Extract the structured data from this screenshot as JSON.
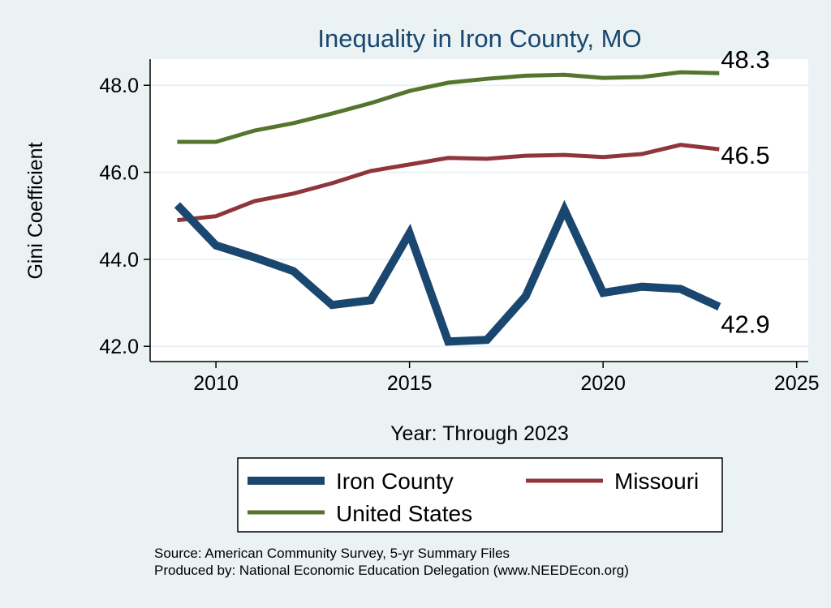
{
  "chart_data": {
    "type": "line",
    "title": "Inequality in Iron County, MO",
    "xlabel": "Year: Through 2023",
    "ylabel": "Gini Coefficient",
    "xlim": [
      2008.3,
      2025.3
    ],
    "ylim": [
      41.65,
      48.6
    ],
    "xticks": [
      2010,
      2015,
      2020,
      2025
    ],
    "xtick_labels": [
      "2010",
      "2015",
      "2020",
      "2025"
    ],
    "yticks": [
      42,
      44,
      46,
      48
    ],
    "ytick_labels": [
      "42.0",
      "44.0",
      "46.0",
      "48.0"
    ],
    "grid": true,
    "legend_position": "bottom",
    "x": [
      2009,
      2010,
      2011,
      2012,
      2013,
      2014,
      2015,
      2016,
      2017,
      2018,
      2019,
      2020,
      2021,
      2022,
      2023
    ],
    "series": [
      {
        "name": "Iron County",
        "color": "#1a476f",
        "end_label": "42.9",
        "values": [
          45.25,
          44.32,
          44.04,
          43.73,
          42.95,
          43.06,
          44.6,
          42.11,
          42.15,
          43.15,
          45.14,
          43.23,
          43.37,
          43.32,
          42.91
        ]
      },
      {
        "name": "Missouri",
        "color": "#90353b",
        "end_label": "46.5",
        "values": [
          44.9,
          44.99,
          45.34,
          45.51,
          45.75,
          46.03,
          46.18,
          46.33,
          46.31,
          46.38,
          46.4,
          46.35,
          46.42,
          46.63,
          46.53
        ]
      },
      {
        "name": "United States",
        "color": "#55752f",
        "end_label": "48.3",
        "values": [
          46.7,
          46.7,
          46.96,
          47.13,
          47.35,
          47.59,
          47.87,
          48.06,
          48.15,
          48.22,
          48.24,
          48.17,
          48.19,
          48.3,
          48.28
        ]
      }
    ],
    "notes": [
      "Source: American Community Survey, 5-yr Summary Files",
      "Produced by: National Economic Education Delegation (www.NEEDEcon.org)"
    ]
  }
}
